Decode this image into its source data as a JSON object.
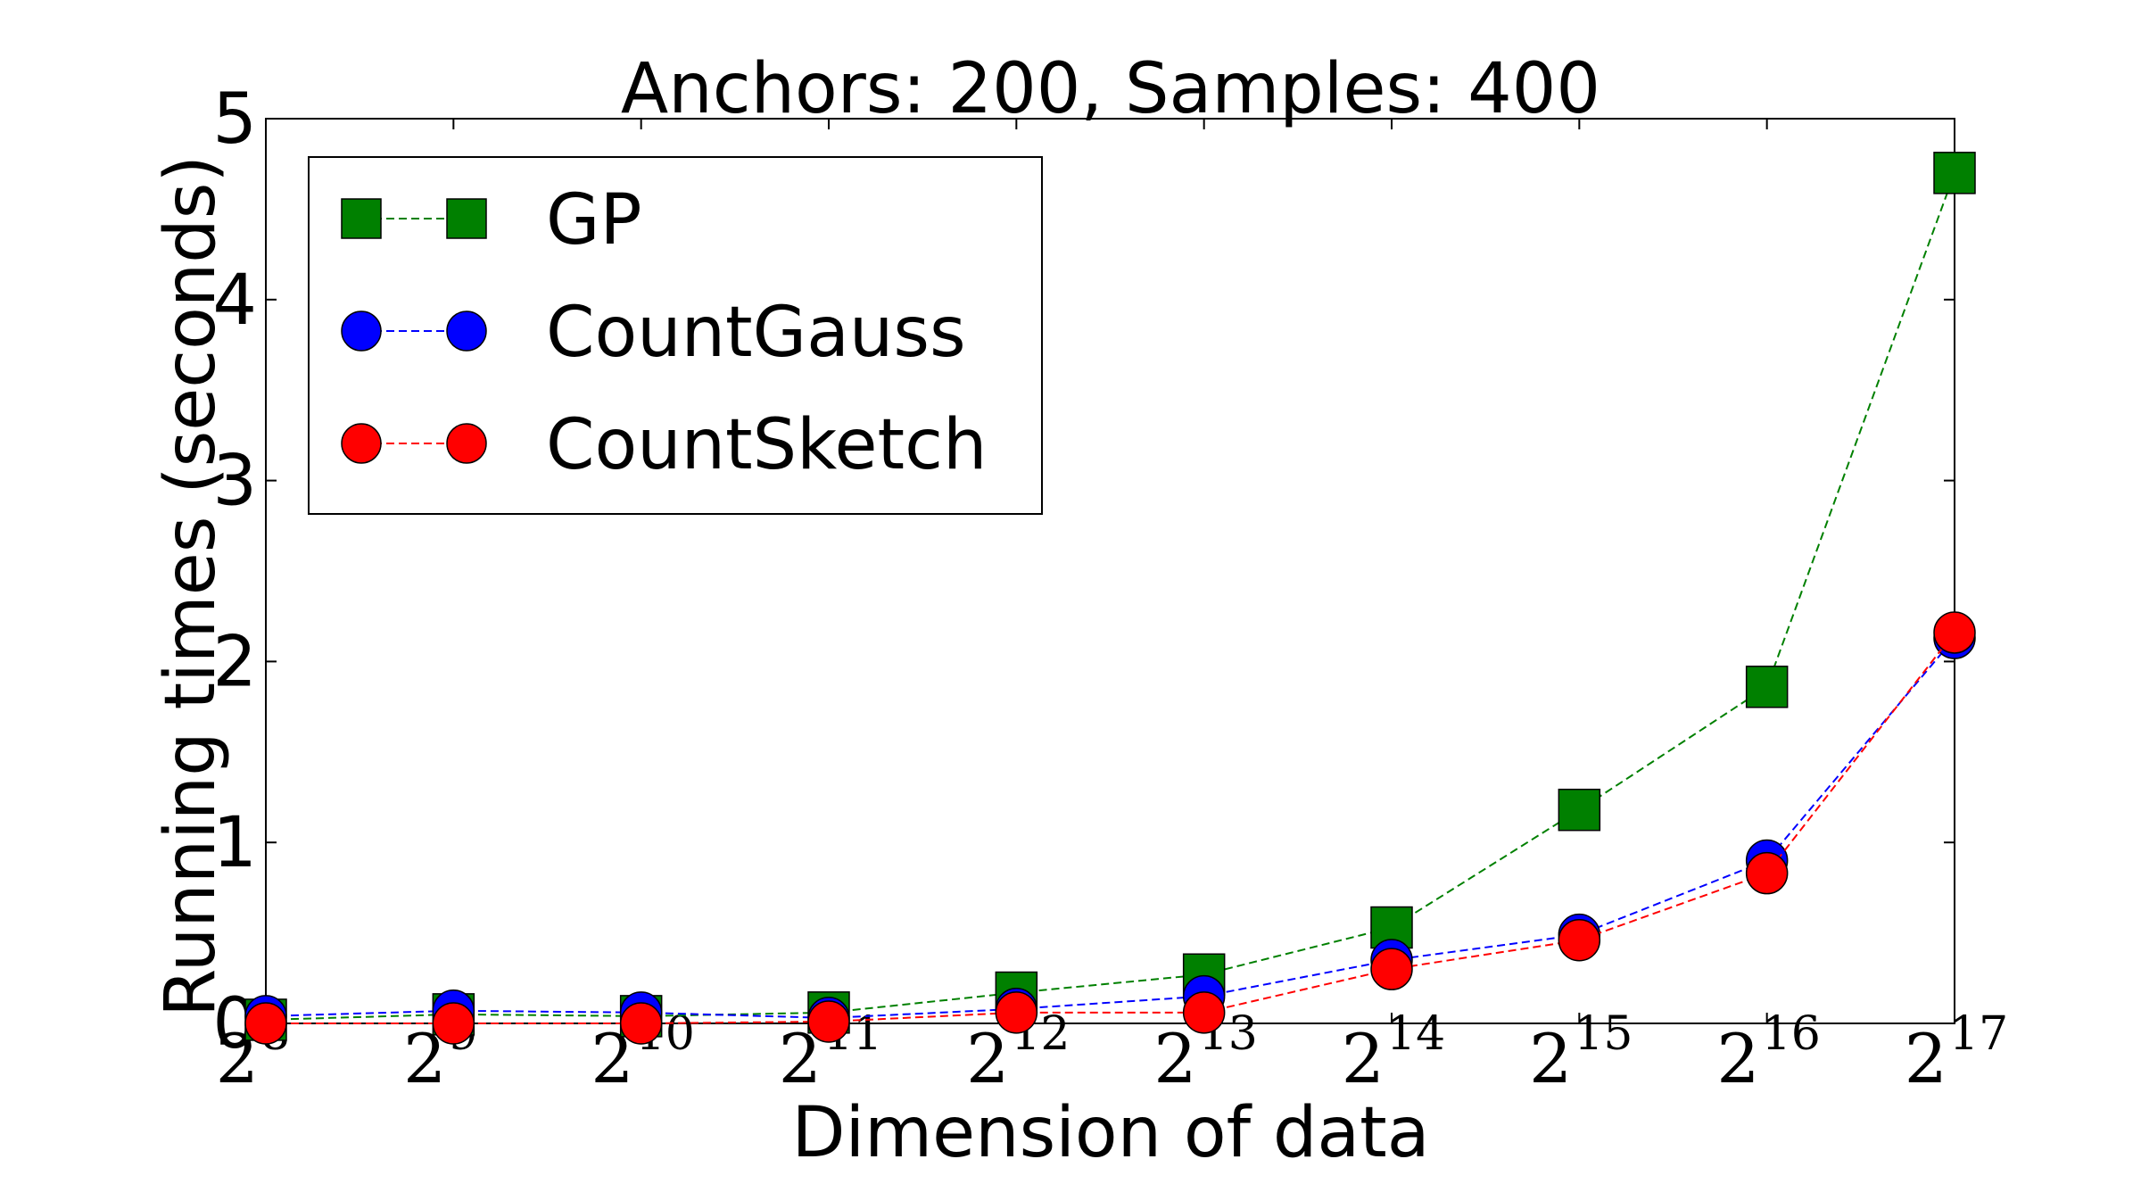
{
  "chart_data": {
    "type": "line",
    "title": "Anchors:  200,  Samples: 400",
    "xlabel": "Dimension of data",
    "ylabel": "Running times (seconds)",
    "x": [
      8,
      9,
      10,
      11,
      12,
      13,
      14,
      15,
      16,
      17
    ],
    "x_scale": "log2",
    "x_tick_labels": [
      {
        "base": "2",
        "exp": "8"
      },
      {
        "base": "2",
        "exp": "9"
      },
      {
        "base": "2",
        "exp": "10"
      },
      {
        "base": "2",
        "exp": "11"
      },
      {
        "base": "2",
        "exp": "12"
      },
      {
        "base": "2",
        "exp": "13"
      },
      {
        "base": "2",
        "exp": "14"
      },
      {
        "base": "2",
        "exp": "15"
      },
      {
        "base": "2",
        "exp": "16"
      },
      {
        "base": "2",
        "exp": "17"
      }
    ],
    "y_ticks": [
      "0",
      "1",
      "2",
      "3",
      "4",
      "5"
    ],
    "ylim": [
      0,
      5
    ],
    "grid": false,
    "legend": "top-left",
    "series": [
      {
        "name": "GP",
        "marker": "square",
        "color": "#008000",
        "values": [
          0.02,
          0.05,
          0.04,
          0.06,
          0.17,
          0.27,
          0.53,
          1.18,
          1.86,
          4.7
        ]
      },
      {
        "name": "CountGauss",
        "marker": "circle",
        "color": "#0000ff",
        "values": [
          0.04,
          0.07,
          0.06,
          0.03,
          0.08,
          0.15,
          0.35,
          0.49,
          0.9,
          2.13
        ]
      },
      {
        "name": "CountSketch",
        "marker": "circle",
        "color": "#ff0000",
        "values": [
          0.0,
          0.0,
          0.0,
          0.01,
          0.06,
          0.06,
          0.3,
          0.46,
          0.83,
          2.16
        ]
      }
    ]
  }
}
